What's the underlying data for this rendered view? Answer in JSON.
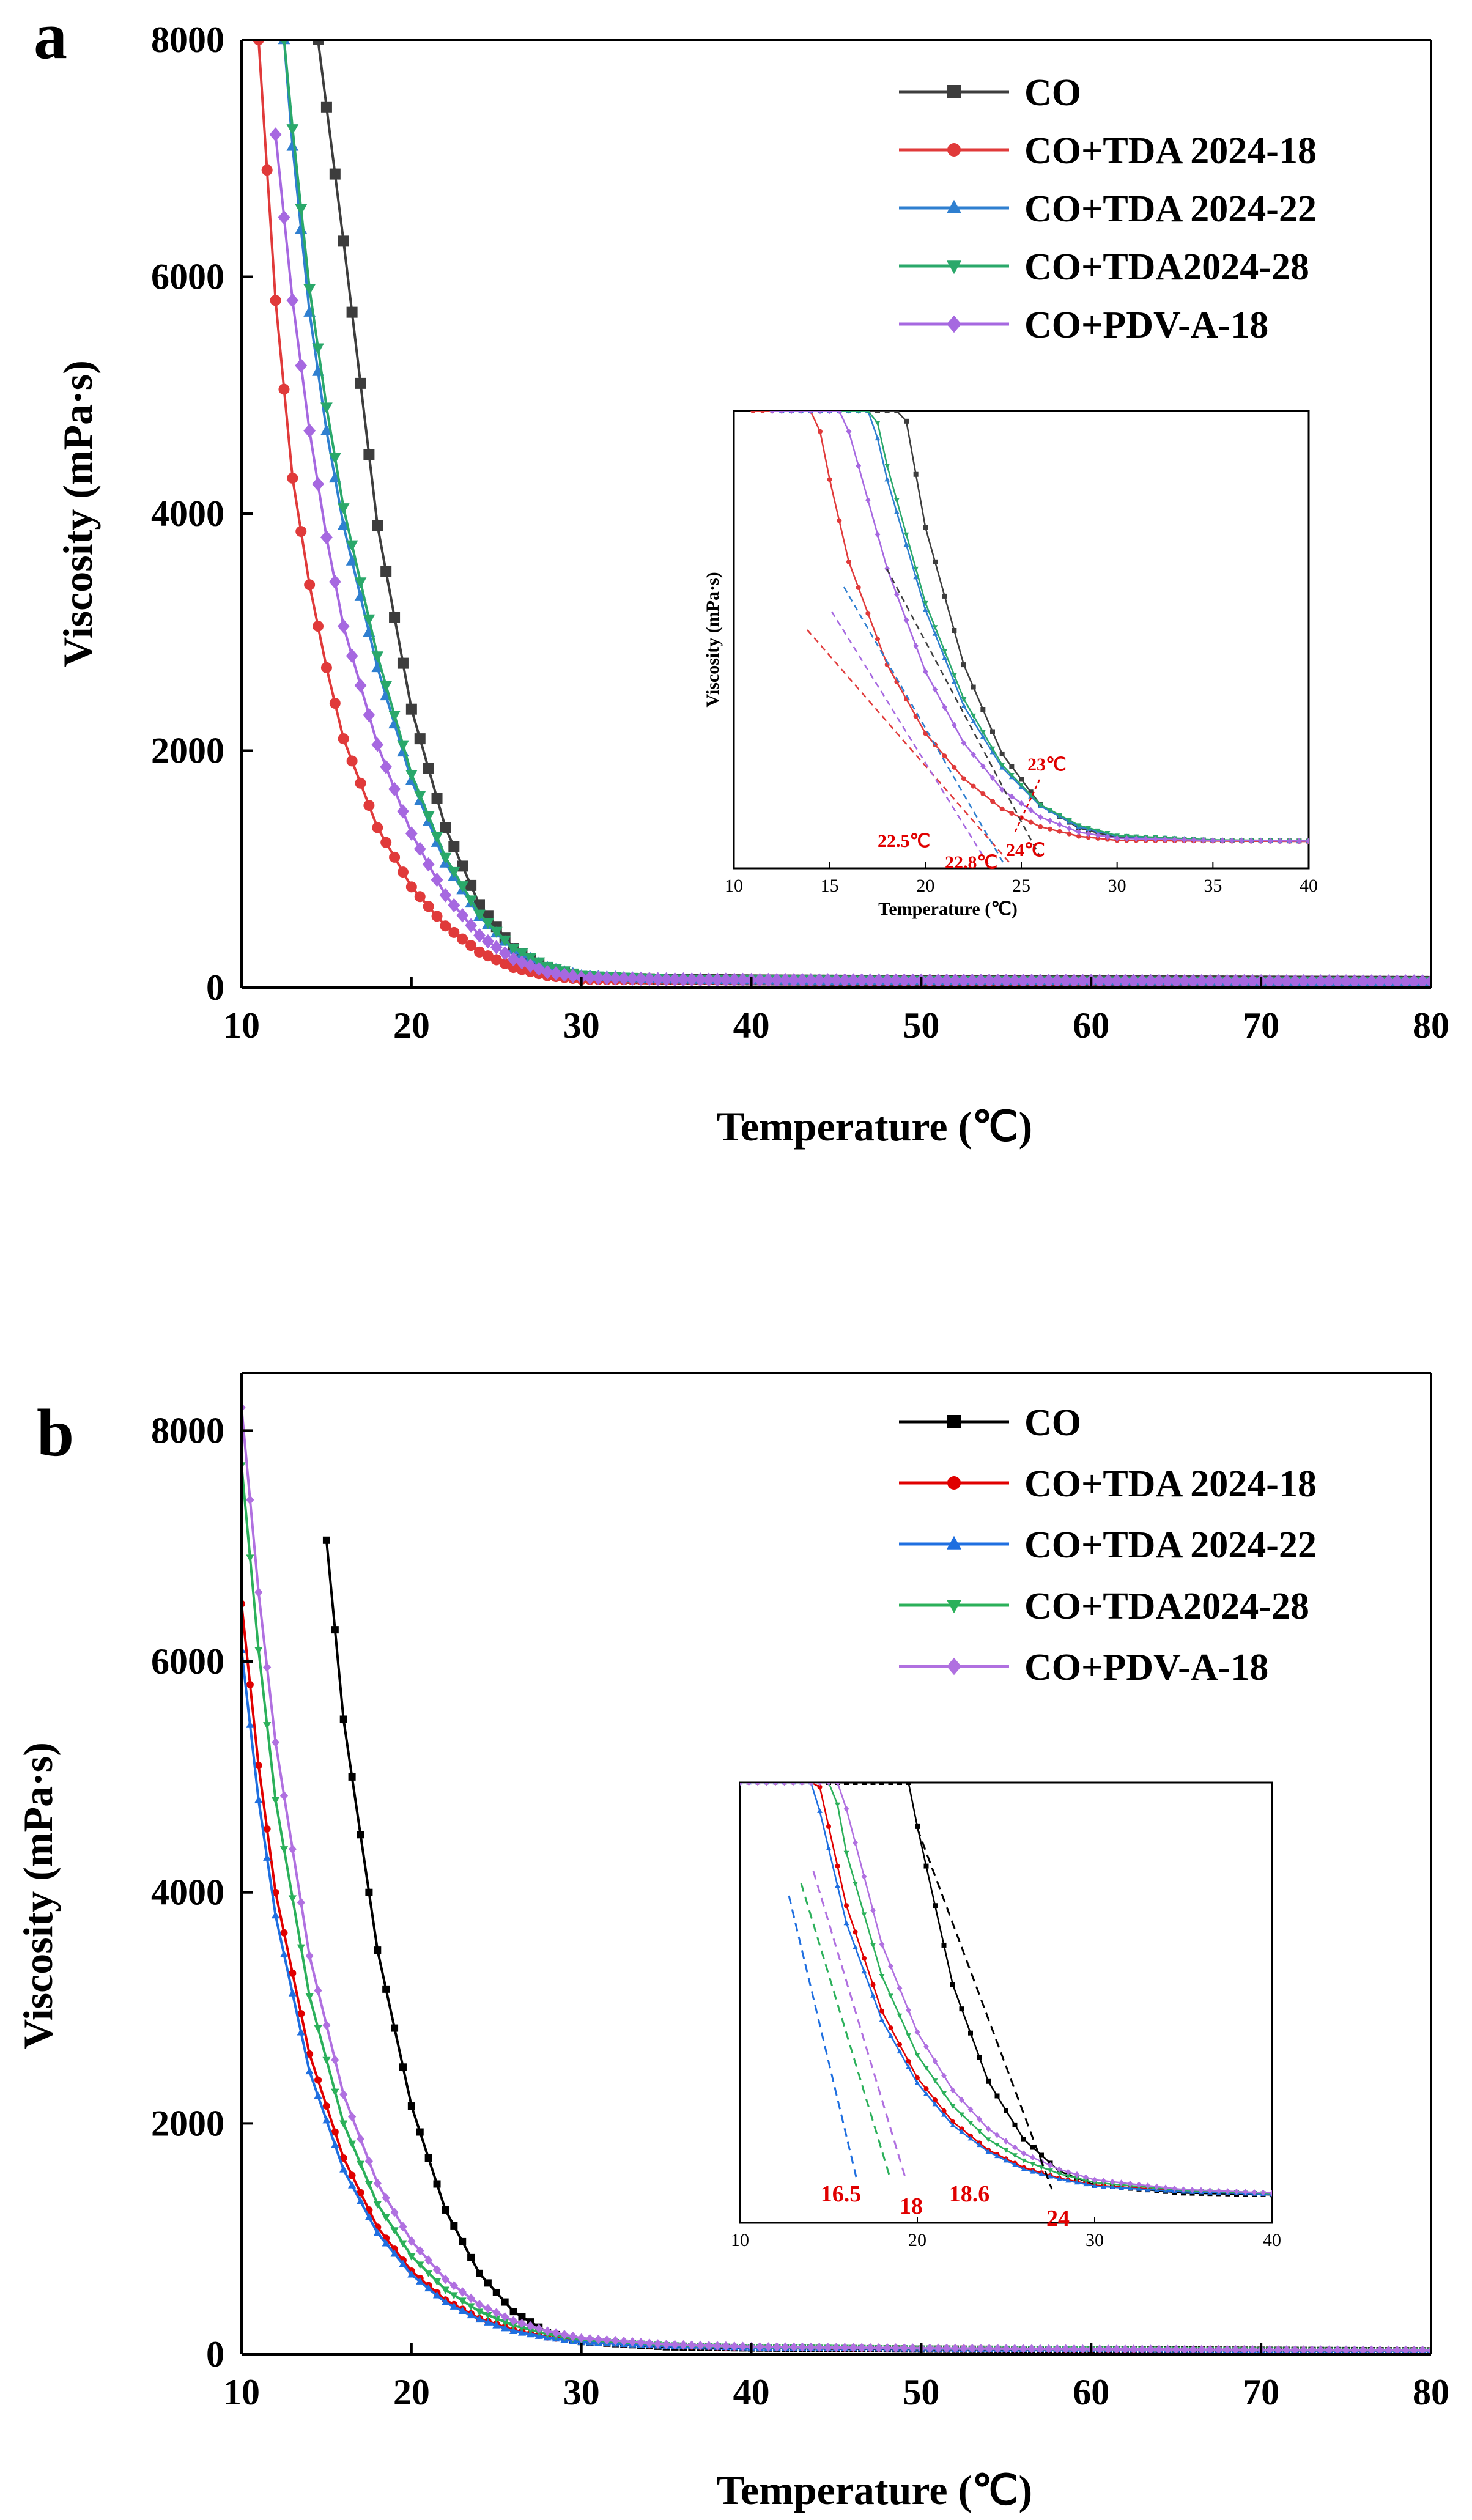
{
  "chart_data": [
    {
      "type": "line",
      "panel_label": "a",
      "xlabel": "Temperature (℃)",
      "ylabel": "Viscosity (mPa·s)",
      "xlim": [
        10,
        80
      ],
      "ylim": [
        0,
        8000
      ],
      "xticks": [
        "10",
        "20",
        "30",
        "40",
        "50",
        "60",
        "70",
        "80"
      ],
      "yticks": [
        "0",
        "2000",
        "4000",
        "6000",
        "8000"
      ],
      "legend_position": "top-right",
      "colors": [
        "#3d3d3d",
        "#e03a3a",
        "#2f7fd0",
        "#2aa86a",
        "#a668e0"
      ],
      "series": [
        {
          "name": "CO",
          "marker": "square",
          "x": [
            14.5,
            16,
            18,
            20,
            22,
            24,
            26,
            28,
            30,
            35,
            40,
            50,
            60,
            70,
            80
          ],
          "y": [
            8000,
            6300,
            3900,
            2350,
            1350,
            700,
            330,
            160,
            90,
            70,
            65,
            60,
            58,
            55,
            52
          ]
        },
        {
          "name": "CO+TDA 2024-18",
          "marker": "circle",
          "x": [
            11,
            12,
            13,
            14,
            15,
            16,
            18,
            20,
            22,
            24,
            26,
            28,
            30,
            35,
            40,
            50,
            60,
            70,
            80
          ],
          "y": [
            8000,
            5800,
            4300,
            3400,
            2700,
            2100,
            1350,
            850,
            520,
            300,
            170,
            100,
            70,
            65,
            62,
            58,
            55,
            52,
            50
          ]
        },
        {
          "name": "CO+TDA 2024-22",
          "marker": "triangle-up",
          "x": [
            12.5,
            13,
            14,
            15,
            16,
            18,
            20,
            22,
            24,
            26,
            28,
            30,
            35,
            40,
            50,
            60,
            70,
            80
          ],
          "y": [
            8000,
            7100,
            5700,
            4700,
            3900,
            2700,
            1750,
            1050,
            600,
            320,
            170,
            100,
            72,
            66,
            60,
            57,
            54,
            52
          ]
        },
        {
          "name": "CO+TDA2024-28",
          "marker": "triangle-down",
          "x": [
            12.5,
            13,
            14,
            15,
            16,
            18,
            20,
            22,
            24,
            26,
            28,
            30,
            35,
            40,
            50,
            60,
            70,
            80
          ],
          "y": [
            8000,
            7250,
            5900,
            4900,
            4050,
            2800,
            1800,
            1100,
            620,
            330,
            180,
            105,
            74,
            67,
            61,
            58,
            55,
            53
          ]
        },
        {
          "name": "CO+PDV-A-18",
          "marker": "diamond",
          "x": [
            12,
            13,
            14,
            15,
            16,
            18,
            20,
            22,
            24,
            26,
            28,
            30,
            35,
            40,
            50,
            60,
            70,
            80
          ],
          "y": [
            7200,
            5800,
            4700,
            3800,
            3050,
            2050,
            1300,
            780,
            440,
            240,
            130,
            85,
            70,
            65,
            60,
            57,
            54,
            52
          ]
        }
      ],
      "inset": {
        "xlabel": "Temperature (℃)",
        "ylabel": "Viscosity (mPa·s)",
        "xlim": [
          10,
          40
        ],
        "xticks": [
          "10",
          "15",
          "20",
          "25",
          "30",
          "35",
          "40"
        ],
        "annotations": [
          "23℃",
          "22.5℃",
          "22.8℃",
          "24℃"
        ]
      }
    },
    {
      "type": "line",
      "panel_label": "b",
      "xlabel": "Temperature (℃)",
      "ylabel": "Viscosity (mPa·s)",
      "xlim": [
        10,
        80
      ],
      "ylim": [
        0,
        8500
      ],
      "xticks": [
        "10",
        "20",
        "30",
        "40",
        "50",
        "60",
        "70",
        "80"
      ],
      "yticks": [
        "0",
        "2000",
        "4000",
        "6000",
        "8000"
      ],
      "legend_position": "top-right",
      "colors": [
        "#000000",
        "#e00000",
        "#1f6fe0",
        "#2bb05a",
        "#b070e0"
      ],
      "series": [
        {
          "name": "CO",
          "marker": "square",
          "x": [
            15,
            16,
            18,
            20,
            22,
            24,
            26,
            28,
            30,
            35,
            40,
            50,
            60,
            70,
            80
          ],
          "y": [
            7050,
            5500,
            3500,
            2150,
            1250,
            700,
            370,
            190,
            110,
            65,
            55,
            45,
            40,
            35,
            30
          ]
        },
        {
          "name": "CO+TDA 2024-18",
          "marker": "circle",
          "x": [
            10,
            11,
            12,
            14,
            16,
            18,
            20,
            22,
            24,
            26,
            28,
            30,
            35,
            40,
            50,
            60,
            70,
            80
          ],
          "y": [
            6500,
            5100,
            4000,
            2600,
            1700,
            1100,
            720,
            470,
            310,
            210,
            150,
            110,
            75,
            60,
            50,
            42,
            36,
            32
          ]
        },
        {
          "name": "CO+TDA 2024-22",
          "marker": "triangle-up",
          "x": [
            10,
            11,
            12,
            14,
            16,
            18,
            20,
            22,
            24,
            26,
            28,
            30,
            35,
            40,
            50,
            60,
            70,
            80
          ],
          "y": [
            6100,
            4800,
            3800,
            2450,
            1600,
            1050,
            690,
            450,
            300,
            200,
            145,
            105,
            72,
            58,
            48,
            41,
            35,
            31
          ]
        },
        {
          "name": "CO+TDA2024-28",
          "marker": "triangle-down",
          "x": [
            10,
            11,
            12,
            14,
            16,
            18,
            20,
            22,
            24,
            26,
            28,
            30,
            35,
            40,
            50,
            60,
            70,
            80
          ],
          "y": [
            7700,
            6100,
            4800,
            3100,
            2000,
            1300,
            850,
            560,
            370,
            250,
            175,
            125,
            80,
            62,
            51,
            43,
            37,
            33
          ]
        },
        {
          "name": "CO+PDV-A-18",
          "marker": "diamond",
          "x": [
            10,
            11,
            12,
            14,
            16,
            18,
            20,
            22,
            24,
            26,
            28,
            30,
            35,
            40,
            50,
            60,
            70,
            80
          ],
          "y": [
            8200,
            6600,
            5300,
            3450,
            2250,
            1480,
            980,
            650,
            430,
            290,
            200,
            140,
            85,
            65,
            52,
            44,
            38,
            34
          ]
        }
      ],
      "inset": {
        "xlim": [
          10,
          40
        ],
        "xticks": [
          "10",
          "20",
          "30",
          "40"
        ],
        "annotations": [
          "16.5",
          "18",
          "18.6",
          "24"
        ]
      }
    }
  ]
}
